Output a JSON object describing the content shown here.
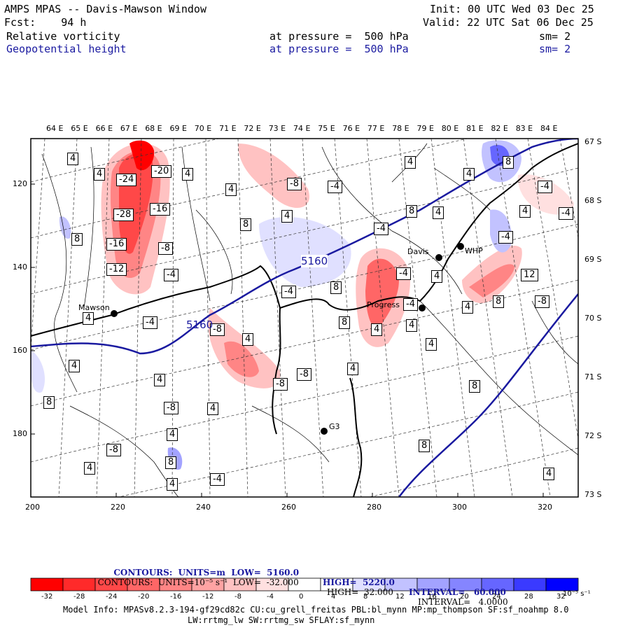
{
  "header": {
    "title": "AMPS MPAS -- Davis-Mawson Window",
    "init": "Init: 00 UTC Wed 03 Dec 25",
    "fcst": "Fcst:    94 h",
    "valid": "Valid: 22 UTC Sat 06 Dec 25",
    "field1_name": "Relative vorticity",
    "field1_level": "at pressure =  500 hPa",
    "field1_sm": "sm= 2",
    "field2_name": "Geopotential height",
    "field2_level": "at pressure =  500 hPa",
    "field2_sm": "sm= 2"
  },
  "map": {
    "top_lon_labels": [
      "64 E",
      "65 E",
      "66 E",
      "67 E",
      "68 E",
      "69 E",
      "70 E",
      "71 E",
      "72 E",
      "73 E",
      "74 E",
      "75 E",
      "76 E",
      "77 E",
      "78 E",
      "79 E",
      "80 E",
      "81 E",
      "82 E",
      "83 E",
      "84 E"
    ],
    "right_lat_labels": [
      "67 S",
      "68 S",
      "69 S",
      "70 S",
      "71 S",
      "72 S",
      "73 S"
    ],
    "x_ticks": [
      "200",
      "220",
      "240",
      "260",
      "280",
      "300",
      "320"
    ],
    "y_ticks": [
      "120",
      "140",
      "160",
      "180"
    ],
    "stations": [
      "Mawson",
      "Davis",
      "WHP",
      "Progress",
      "G3"
    ],
    "height_contour_labels": [
      "5160",
      "5160"
    ],
    "vorticity_labels": [
      "4",
      "4",
      "-24",
      "-20",
      "4",
      "-28",
      "-16",
      "-16",
      "-8",
      "-12",
      "-4",
      "8",
      "4",
      "8",
      "-8",
      "-4",
      "4",
      "-4",
      "8",
      "4",
      "4",
      "4",
      "8",
      "-4",
      "-4",
      "4",
      "-4",
      "12",
      "8",
      "-8",
      "-4",
      "8",
      "-4",
      "8",
      "4",
      "-4",
      "-8",
      "4",
      "-8",
      "-8",
      "8",
      "-8",
      "-8",
      "4",
      "4",
      "4",
      "4",
      "-4",
      "4",
      "8",
      "4",
      "8",
      "8",
      "4",
      "-4",
      "4",
      "4",
      "4",
      "4",
      "4",
      "4",
      "4"
    ]
  },
  "contour_info": {
    "line1_label": "CONTOURS:  UNITS=m  LOW=  5160.0",
    "line1_high": "HIGH=  5220.0",
    "line1_interval": "INTERVAL=   60.000",
    "line2_label": "CONTOURS:  UNITS=10⁻⁵ s⁻¹  LOW=  -32.000",
    "line2_high": "HIGH=  32.000",
    "line2_interval": "INTERVAL=   4.0000"
  },
  "colorbar": {
    "ticks": [
      "-32",
      "-28",
      "-24",
      "-20",
      "-16",
      "-12",
      "-8",
      "-4",
      "0",
      "4",
      "8",
      "12",
      "16",
      "20",
      "24",
      "28",
      "32"
    ],
    "unit": "10⁻⁵ s⁻¹",
    "colors": [
      "#ff0000",
      "#ff2a2a",
      "#ff4848",
      "#ff6666",
      "#ff8585",
      "#ffa3a3",
      "#ffc2c2",
      "#ffe0e0",
      "#ffffff",
      "#ffffff",
      "#e0e0ff",
      "#c2c2ff",
      "#a3a3ff",
      "#8585ff",
      "#6666ff",
      "#3a3aff",
      "#0000ff"
    ]
  },
  "footer": {
    "model_info": "Model Info: MPASv8.2.3-194-gf29cd82c CU:cu_grell_freitas PBL:bl_mynn MP:mp_thompson SF:sf_noahmp 8.0",
    "model_info2": "LW:rrtmg_lw SW:rrtmg_sw SFLAY:sf_mynn"
  }
}
